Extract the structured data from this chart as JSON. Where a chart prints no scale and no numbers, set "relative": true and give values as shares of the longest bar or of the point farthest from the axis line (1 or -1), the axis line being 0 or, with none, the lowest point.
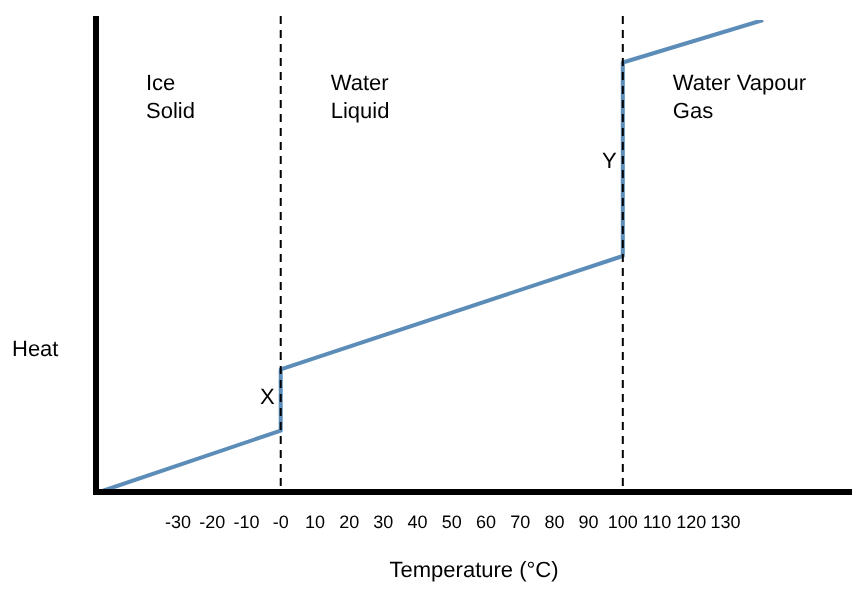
{
  "chart_data": {
    "type": "line",
    "xlabel": "Temperature (°C)",
    "ylabel": "Heat",
    "relative": true,
    "x": [
      -53,
      0,
      0,
      100,
      100,
      141
    ],
    "series": [
      {
        "color": "#5b8db8",
        "values": [
          0,
          0.13,
          0.26,
          0.5,
          0.91,
          1
        ]
      }
    ],
    "xlim": [
      -54,
      167
    ],
    "xticks": [
      -30,
      -20,
      -10,
      {
        "value": 0,
        "label": "-0"
      },
      10,
      20,
      30,
      40,
      50,
      60,
      70,
      80,
      90,
      100,
      110,
      120,
      130
    ],
    "ref_lines": [
      {
        "axis": "x",
        "value": 0,
        "line_style": "dashed",
        "color": "#000000"
      },
      {
        "axis": "x",
        "value": 100,
        "line_style": "dashed",
        "color": "#000000"
      }
    ],
    "annotations": [
      "Ice\nSolid",
      "Water\nLiquid",
      "Water Vapour\nGas",
      {
        "text": "X",
        "x": 0,
        "y": 0.2
      },
      {
        "text": "Y",
        "x": 100,
        "y": 0.7
      }
    ],
    "grid": false,
    "legend": false,
    "marker": "none",
    "line_style": "solid"
  }
}
